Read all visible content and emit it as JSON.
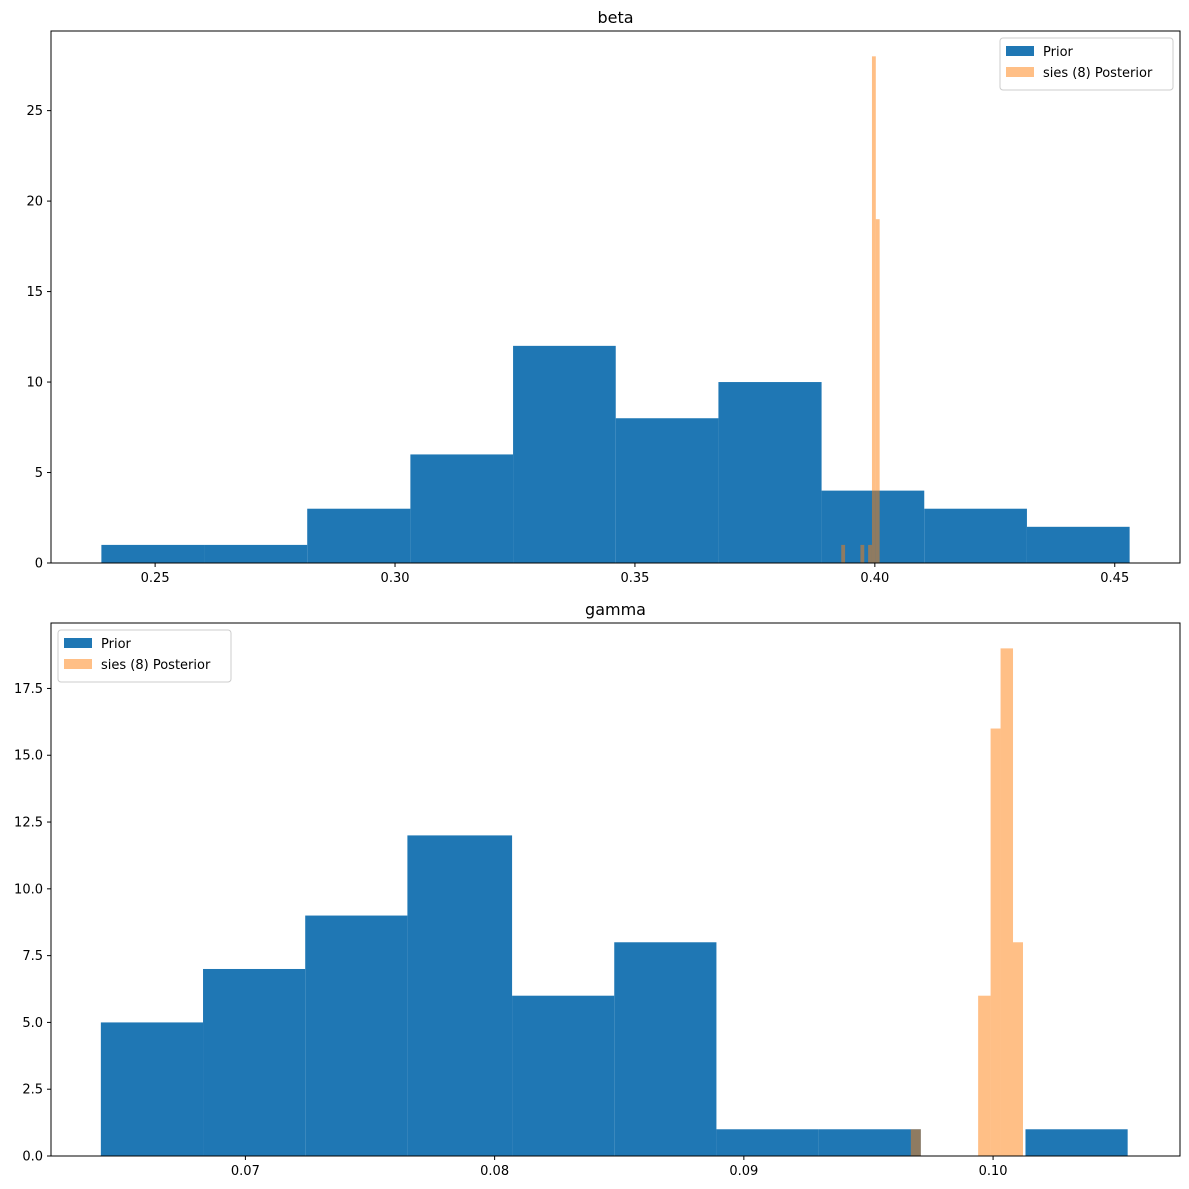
{
  "chart_data": [
    {
      "type": "bar",
      "title": "beta",
      "xlabel": "",
      "ylabel": "",
      "xlim": [
        0.2283,
        0.4636
      ],
      "ylim": [
        0,
        29.4
      ],
      "xticks": [
        {
          "value": 0.25,
          "label": "0.25"
        },
        {
          "value": 0.3,
          "label": "0.30"
        },
        {
          "value": 0.35,
          "label": "0.35"
        },
        {
          "value": 0.4,
          "label": "0.40"
        },
        {
          "value": 0.45,
          "label": "0.45"
        }
      ],
      "yticks": [
        {
          "value": 0,
          "label": "0"
        },
        {
          "value": 5,
          "label": "5"
        },
        {
          "value": 10,
          "label": "10"
        },
        {
          "value": 15,
          "label": "15"
        },
        {
          "value": 20,
          "label": "20"
        },
        {
          "value": 25,
          "label": "25"
        }
      ],
      "legend": {
        "position": "top-right"
      },
      "series": [
        {
          "name": "Prior",
          "color": "#1f77b4",
          "opacity": 1,
          "bins": [
            {
              "x0": 0.2388,
              "x1": 0.2603,
              "count": 1
            },
            {
              "x0": 0.2603,
              "x1": 0.2817,
              "count": 1
            },
            {
              "x0": 0.2817,
              "x1": 0.3032,
              "count": 3
            },
            {
              "x0": 0.3032,
              "x1": 0.3246,
              "count": 6
            },
            {
              "x0": 0.3246,
              "x1": 0.346,
              "count": 12
            },
            {
              "x0": 0.346,
              "x1": 0.3674,
              "count": 8
            },
            {
              "x0": 0.3674,
              "x1": 0.3889,
              "count": 10
            },
            {
              "x0": 0.3889,
              "x1": 0.4103,
              "count": 4
            },
            {
              "x0": 0.4103,
              "x1": 0.4317,
              "count": 3
            },
            {
              "x0": 0.4317,
              "x1": 0.4531,
              "count": 2
            }
          ]
        },
        {
          "name": "sies (8) Posterior",
          "color": "#ff7f0e",
          "opacity": 0.5,
          "bins": [
            {
              "x0": 0.393,
              "x1": 0.3938,
              "count": 1
            },
            {
              "x0": 0.397,
              "x1": 0.3978,
              "count": 1
            },
            {
              "x0": 0.3986,
              "x1": 0.3994,
              "count": 1
            },
            {
              "x0": 0.3994,
              "x1": 0.4002,
              "count": 28
            },
            {
              "x0": 0.4002,
              "x1": 0.401,
              "count": 19
            }
          ]
        }
      ]
    },
    {
      "type": "bar",
      "title": "gamma",
      "xlabel": "",
      "ylabel": "",
      "xlim": [
        0.0622,
        0.1075
      ],
      "ylim": [
        0,
        19.95
      ],
      "xticks": [
        {
          "value": 0.07,
          "label": "0.07"
        },
        {
          "value": 0.08,
          "label": "0.08"
        },
        {
          "value": 0.09,
          "label": "0.09"
        },
        {
          "value": 0.1,
          "label": "0.10"
        }
      ],
      "yticks": [
        {
          "value": 0,
          "label": "0.0"
        },
        {
          "value": 2.5,
          "label": "2.5"
        },
        {
          "value": 5,
          "label": "5.0"
        },
        {
          "value": 7.5,
          "label": "7.5"
        },
        {
          "value": 10,
          "label": "10.0"
        },
        {
          "value": 12.5,
          "label": "12.5"
        },
        {
          "value": 15,
          "label": "15.0"
        },
        {
          "value": 17.5,
          "label": "17.5"
        }
      ],
      "legend": {
        "position": "top-left"
      },
      "series": [
        {
          "name": "Prior",
          "color": "#1f77b4",
          "opacity": 1,
          "bins": [
            {
              "x0": 0.0642,
              "x1": 0.0683,
              "count": 5
            },
            {
              "x0": 0.0683,
              "x1": 0.0724,
              "count": 7
            },
            {
              "x0": 0.0724,
              "x1": 0.0765,
              "count": 9
            },
            {
              "x0": 0.0765,
              "x1": 0.0807,
              "count": 12
            },
            {
              "x0": 0.0807,
              "x1": 0.0848,
              "count": 6
            },
            {
              "x0": 0.0848,
              "x1": 0.0889,
              "count": 8
            },
            {
              "x0": 0.0889,
              "x1": 0.093,
              "count": 1
            },
            {
              "x0": 0.093,
              "x1": 0.0971,
              "count": 1
            },
            {
              "x0": 0.0971,
              "x1": 0.1013,
              "count": 0
            },
            {
              "x0": 0.1013,
              "x1": 0.1054,
              "count": 1
            }
          ]
        },
        {
          "name": "sies (8) Posterior",
          "color": "#ff7f0e",
          "opacity": 0.5,
          "bins": [
            {
              "x0": 0.0967,
              "x1": 0.0971,
              "count": 1
            },
            {
              "x0": 0.0994,
              "x1": 0.0999,
              "count": 6
            },
            {
              "x0": 0.0999,
              "x1": 0.1003,
              "count": 16
            },
            {
              "x0": 0.1003,
              "x1": 0.1008,
              "count": 19
            },
            {
              "x0": 0.1008,
              "x1": 0.1012,
              "count": 8
            }
          ]
        }
      ]
    }
  ]
}
